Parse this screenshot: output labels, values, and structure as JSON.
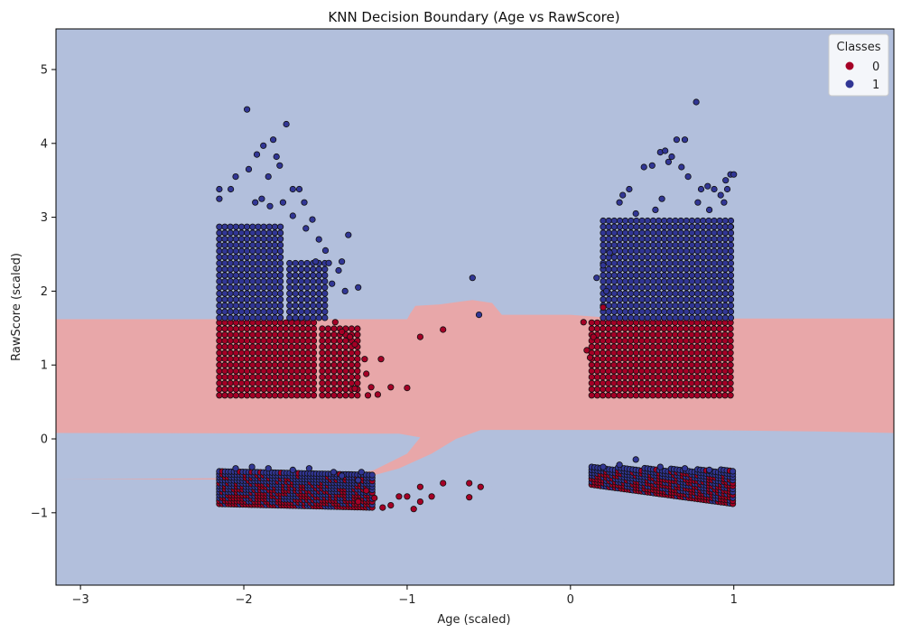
{
  "chart_data": {
    "type": "scatter",
    "title": "KNN Decision Boundary (Age vs RawScore)",
    "xlabel": "Age (scaled)",
    "ylabel": "RawScore (scaled)",
    "xlim": [
      -3.15,
      1.98
    ],
    "ylim": [
      -1.98,
      5.55
    ],
    "xticks": [
      -3,
      -2,
      -1,
      0,
      1
    ],
    "yticks": [
      -1,
      0,
      1,
      2,
      3,
      4,
      5
    ],
    "grid": false,
    "legend": {
      "title": "Classes",
      "placement": "top-right",
      "entries": [
        {
          "label": "0",
          "color": "#a50026"
        },
        {
          "label": "1",
          "color": "#313695"
        }
      ]
    },
    "region_colors": {
      "0": "#e8a7a9",
      "1": "#b2bfdc"
    },
    "point_colors": {
      "0": "#a50026",
      "1": "#313695"
    },
    "series": [
      {
        "class": "1",
        "points": [
          [
            -2.15,
            3.38
          ],
          [
            -2.08,
            3.38
          ],
          [
            -2.15,
            3.25
          ],
          [
            -2.05,
            3.55
          ],
          [
            -1.97,
            3.65
          ],
          [
            -1.92,
            3.85
          ],
          [
            -1.88,
            3.97
          ],
          [
            -1.82,
            4.05
          ],
          [
            -1.8,
            3.82
          ],
          [
            -1.74,
            4.26
          ],
          [
            -1.98,
            4.46
          ],
          [
            -1.85,
            3.55
          ],
          [
            -1.78,
            3.7
          ],
          [
            -1.7,
            3.38
          ],
          [
            -1.66,
            3.38
          ],
          [
            -1.63,
            3.2
          ],
          [
            -1.58,
            2.97
          ],
          [
            -1.54,
            2.7
          ],
          [
            -1.5,
            2.55
          ],
          [
            -1.48,
            2.38
          ],
          [
            -1.4,
            2.4
          ],
          [
            -1.36,
            2.76
          ],
          [
            -1.42,
            2.28
          ],
          [
            -1.3,
            2.05
          ],
          [
            -1.93,
            3.2
          ],
          [
            -1.89,
            3.25
          ],
          [
            -1.84,
            3.15
          ],
          [
            -1.76,
            3.2
          ],
          [
            -1.7,
            3.02
          ],
          [
            -1.62,
            2.85
          ],
          [
            -1.56,
            2.4
          ],
          [
            -1.46,
            2.1
          ],
          [
            -1.38,
            2.0
          ],
          [
            -0.6,
            2.18
          ],
          [
            -0.56,
            1.68
          ],
          [
            0.2,
            2.35
          ],
          [
            0.24,
            2.52
          ],
          [
            0.3,
            3.2
          ],
          [
            0.32,
            3.3
          ],
          [
            0.36,
            3.38
          ],
          [
            0.45,
            3.68
          ],
          [
            0.5,
            3.7
          ],
          [
            0.55,
            3.88
          ],
          [
            0.58,
            3.9
          ],
          [
            0.62,
            3.82
          ],
          [
            0.65,
            4.05
          ],
          [
            0.7,
            4.05
          ],
          [
            0.6,
            3.75
          ],
          [
            0.68,
            3.68
          ],
          [
            0.72,
            3.55
          ],
          [
            0.77,
            4.56
          ],
          [
            0.8,
            3.38
          ],
          [
            0.84,
            3.42
          ],
          [
            0.88,
            3.38
          ],
          [
            0.92,
            3.3
          ],
          [
            0.95,
            3.5
          ],
          [
            0.98,
            3.58
          ],
          [
            1.0,
            3.58
          ],
          [
            0.96,
            3.38
          ],
          [
            0.94,
            3.2
          ],
          [
            0.98,
            2.87
          ],
          [
            0.4,
            3.05
          ],
          [
            0.52,
            3.1
          ],
          [
            0.56,
            3.25
          ],
          [
            0.78,
            3.2
          ],
          [
            0.85,
            3.1
          ],
          [
            0.16,
            2.18
          ],
          [
            0.22,
            2.0
          ]
        ]
      },
      {
        "class": "0",
        "points": [
          [
            -1.32,
            0.68
          ],
          [
            -1.22,
            0.7
          ],
          [
            -1.18,
            0.6
          ],
          [
            -1.1,
            0.7
          ],
          [
            -1.0,
            0.69
          ],
          [
            -0.92,
            1.38
          ],
          [
            -0.78,
            1.48
          ],
          [
            -1.16,
            1.08
          ],
          [
            -1.26,
            1.08
          ],
          [
            -1.35,
            1.38
          ],
          [
            -1.4,
            1.45
          ],
          [
            -1.32,
            1.28
          ],
          [
            -1.44,
            1.58
          ],
          [
            -1.25,
            0.88
          ],
          [
            -1.24,
            0.59
          ],
          [
            0.08,
            1.58
          ],
          [
            0.12,
            1.1
          ],
          [
            0.14,
            1.38
          ],
          [
            0.2,
            1.78
          ],
          [
            0.1,
            1.2
          ]
        ]
      },
      {
        "class": "0",
        "points": [
          [
            -1.05,
            -0.78
          ],
          [
            -1.0,
            -0.78
          ],
          [
            -0.96,
            -0.95
          ],
          [
            -0.92,
            -0.85
          ],
          [
            -0.92,
            -0.65
          ],
          [
            -0.85,
            -0.78
          ],
          [
            -0.78,
            -0.6
          ],
          [
            -0.62,
            -0.6
          ],
          [
            -0.62,
            -0.79
          ],
          [
            -1.1,
            -0.9
          ],
          [
            -1.15,
            -0.93
          ],
          [
            -1.2,
            -0.8
          ],
          [
            -1.25,
            -0.7
          ],
          [
            -1.3,
            -0.85
          ],
          [
            -0.55,
            -0.65
          ]
        ]
      },
      {
        "class": "1",
        "points": [
          [
            -1.4,
            -0.5
          ],
          [
            -1.3,
            -0.56
          ],
          [
            -1.28,
            -0.45
          ],
          [
            -1.45,
            -0.45
          ],
          [
            -1.6,
            -0.4
          ],
          [
            -1.7,
            -0.42
          ],
          [
            -1.85,
            -0.4
          ],
          [
            -1.95,
            -0.38
          ],
          [
            -2.05,
            -0.4
          ],
          [
            0.4,
            -0.28
          ],
          [
            0.3,
            -0.35
          ],
          [
            0.55,
            -0.38
          ],
          [
            0.7,
            -0.4
          ],
          [
            0.85,
            -0.42
          ],
          [
            0.2,
            -0.38
          ]
        ]
      }
    ],
    "dense_clusters": [
      {
        "class": "0",
        "shape": "grid",
        "x_range": [
          -2.15,
          -1.55
        ],
        "y_range": [
          0.59,
          1.59
        ],
        "x_step": 0.034,
        "y_step": 0.082
      },
      {
        "class": "0",
        "shape": "grid",
        "x_range": [
          -1.52,
          -1.3
        ],
        "y_range": [
          0.59,
          1.55
        ],
        "x_step": 0.036,
        "y_step": 0.082
      },
      {
        "class": "1",
        "shape": "grid",
        "x_range": [
          -2.15,
          -1.75
        ],
        "y_range": [
          1.64,
          2.87
        ],
        "x_step": 0.034,
        "y_step": 0.082
      },
      {
        "class": "1",
        "shape": "grid",
        "x_range": [
          -1.72,
          -1.5
        ],
        "y_range": [
          1.64,
          2.45
        ],
        "x_step": 0.036,
        "y_step": 0.082
      },
      {
        "class": "0",
        "shape": "grid",
        "x_range": [
          0.13,
          1.0
        ],
        "y_range": [
          0.59,
          1.59
        ],
        "x_step": 0.034,
        "y_step": 0.082
      },
      {
        "class": "1",
        "shape": "grid",
        "x_range": [
          0.2,
          1.0
        ],
        "y_range": [
          1.64,
          2.97
        ],
        "x_step": 0.034,
        "y_step": 0.082
      },
      {
        "class": "mixed",
        "shape": "band",
        "x_range": [
          -2.15,
          -1.2
        ],
        "y_top": [
          -0.42,
          -0.48
        ],
        "y_bottom": [
          -0.88,
          -0.93
        ],
        "x_step": 0.018,
        "y_step": 0.04
      },
      {
        "class": "mixed",
        "shape": "band",
        "x_range": [
          0.13,
          1.0
        ],
        "y_top": [
          -0.38,
          -0.42
        ],
        "y_bottom": [
          -0.62,
          -0.88
        ],
        "x_step": 0.018,
        "y_step": 0.04
      }
    ],
    "boundary_regions": [
      {
        "class": "0",
        "polygon": [
          [
            -3.15,
            1.62
          ],
          [
            -1.35,
            1.62
          ],
          [
            -1.0,
            1.62
          ],
          [
            -0.98,
            1.7
          ],
          [
            -0.95,
            1.8
          ],
          [
            -0.8,
            1.82
          ],
          [
            -0.6,
            1.88
          ],
          [
            -0.48,
            1.84
          ],
          [
            -0.42,
            1.68
          ],
          [
            0.0,
            1.68
          ],
          [
            0.3,
            1.63
          ],
          [
            1.98,
            1.63
          ],
          [
            1.98,
            0.08
          ],
          [
            1.5,
            0.1
          ],
          [
            0.8,
            0.12
          ],
          [
            0.3,
            0.12
          ],
          [
            -0.55,
            0.12
          ],
          [
            -0.7,
            0.0
          ],
          [
            -0.85,
            -0.2
          ],
          [
            -1.05,
            -0.4
          ],
          [
            -1.25,
            -0.52
          ],
          [
            -1.5,
            -0.55
          ],
          [
            -3.15,
            -0.55
          ]
        ]
      },
      {
        "class": "1",
        "polygon": [
          [
            -3.15,
            0.08
          ],
          [
            -1.05,
            0.07
          ],
          [
            -0.92,
            0.02
          ],
          [
            -1.0,
            -0.2
          ],
          [
            -1.2,
            -0.42
          ],
          [
            -1.4,
            -0.52
          ],
          [
            -3.15,
            -0.55
          ]
        ]
      },
      {
        "class": "1",
        "polygon": [
          [
            -0.55,
            0.12
          ],
          [
            0.4,
            0.12
          ],
          [
            1.98,
            0.06
          ],
          [
            1.98,
            -0.52
          ],
          [
            1.0,
            -0.52
          ],
          [
            0.3,
            -0.55
          ],
          [
            0.1,
            -0.6
          ],
          [
            -0.05,
            -0.75
          ],
          [
            -0.2,
            -1.0
          ],
          [
            -0.3,
            -1.2
          ],
          [
            -0.38,
            -1.28
          ],
          [
            -0.42,
            -1.2
          ],
          [
            -0.45,
            -0.9
          ],
          [
            -0.5,
            -0.5
          ],
          [
            -0.53,
            -0.2
          ],
          [
            -0.57,
            0.0
          ]
        ]
      }
    ]
  }
}
